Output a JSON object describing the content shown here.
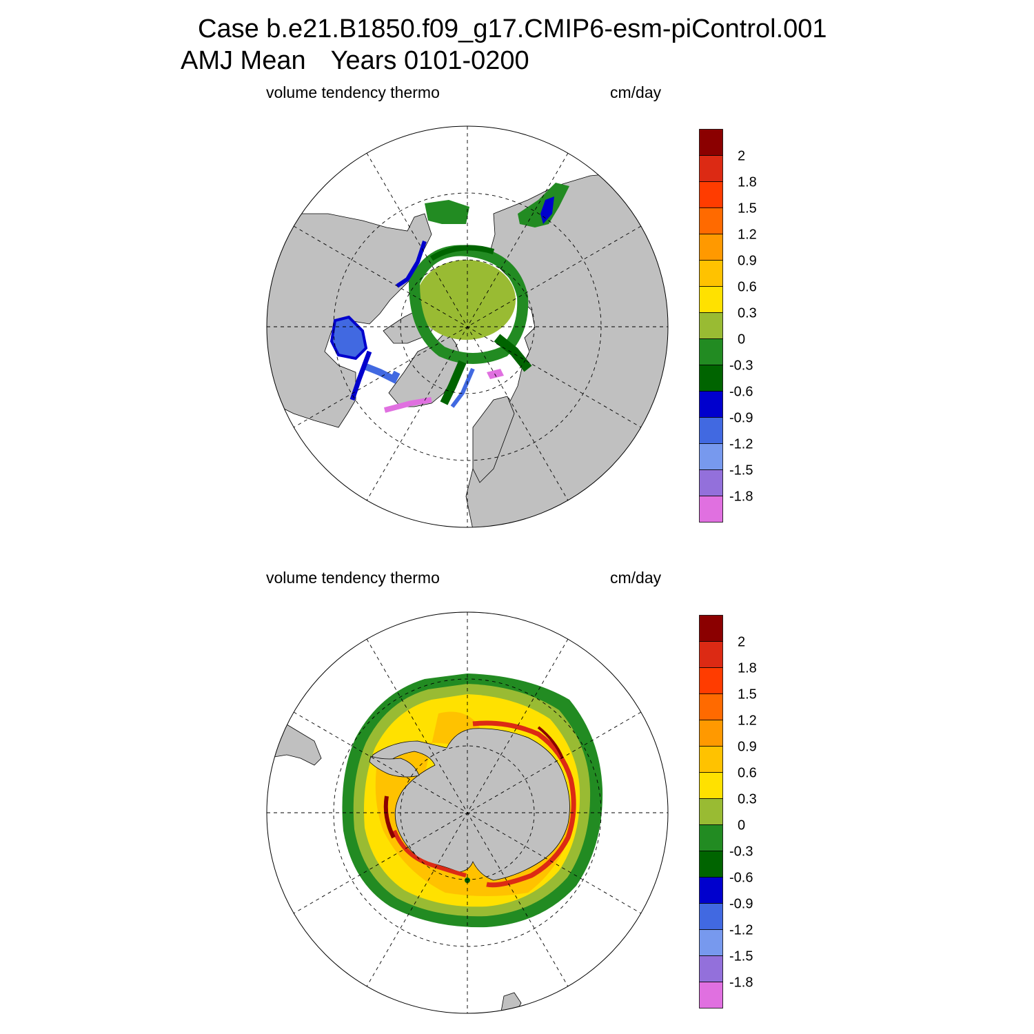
{
  "title": {
    "case_line": "Case b.e21.B1850.f09_g17.CMIP6-esm-piControl.001",
    "season": "AMJ Mean",
    "years": "Years 0101-0200"
  },
  "panels": [
    {
      "hemisphere": "north",
      "variable": "volume tendency thermo",
      "units": "cm/day"
    },
    {
      "hemisphere": "south",
      "variable": "volume tendency thermo",
      "units": "cm/day"
    }
  ],
  "colorbar": {
    "levels": [
      "2",
      "1.8",
      "1.5",
      "1.2",
      "0.9",
      "0.6",
      "0.3",
      "0",
      "-0.3",
      "-0.6",
      "-0.9",
      "-1.2",
      "-1.5",
      "-1.8"
    ],
    "colors": [
      "#8b0000",
      "#dc2a14",
      "#ff3c00",
      "#ff6a00",
      "#ff9900",
      "#ffc200",
      "#ffe100",
      "#99bb33",
      "#228b22",
      "#006400",
      "#0000cd",
      "#4169e1",
      "#7799ee",
      "#9370db",
      "#e070e0"
    ]
  },
  "map_colors": {
    "land": "#c0c0c0",
    "ocean": "#ffffff"
  }
}
